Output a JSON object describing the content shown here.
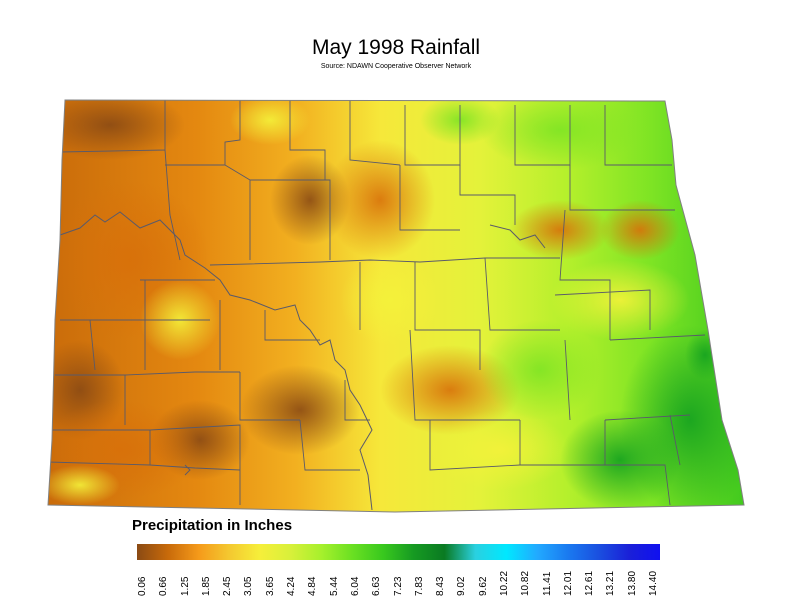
{
  "title": "May 1998 Rainfall",
  "subtitle": "Source: NDAWN Cooperative Observer Network",
  "legend": {
    "title": "Precipitation in Inches",
    "ticks": [
      "0.06",
      "0.66",
      "1.25",
      "1.85",
      "2.45",
      "3.05",
      "3.65",
      "4.24",
      "4.84",
      "5.44",
      "6.04",
      "6.63",
      "7.23",
      "7.83",
      "8.43",
      "9.02",
      "9.62",
      "10.22",
      "10.82",
      "11.41",
      "12.01",
      "12.61",
      "13.21",
      "13.80",
      "14.40"
    ],
    "colors": [
      "#8a4a14",
      "#c86a0a",
      "#f59a1a",
      "#f4c830",
      "#f6ef3a",
      "#d8f03a",
      "#a6f02c",
      "#6ae022",
      "#38c81e",
      "#169a22",
      "#0a7a22",
      "#2ad0e0",
      "#00e8ff",
      "#22aaff",
      "#1a7af0",
      "#1a50e0",
      "#1a20d8",
      "#1010f0"
    ]
  },
  "regions": {
    "west": "low rainfall (0.06–1.85 in)",
    "central": "moderate rainfall (1.85–4.24 in)",
    "east": "higher rainfall (4.24–7.23 in)"
  }
}
